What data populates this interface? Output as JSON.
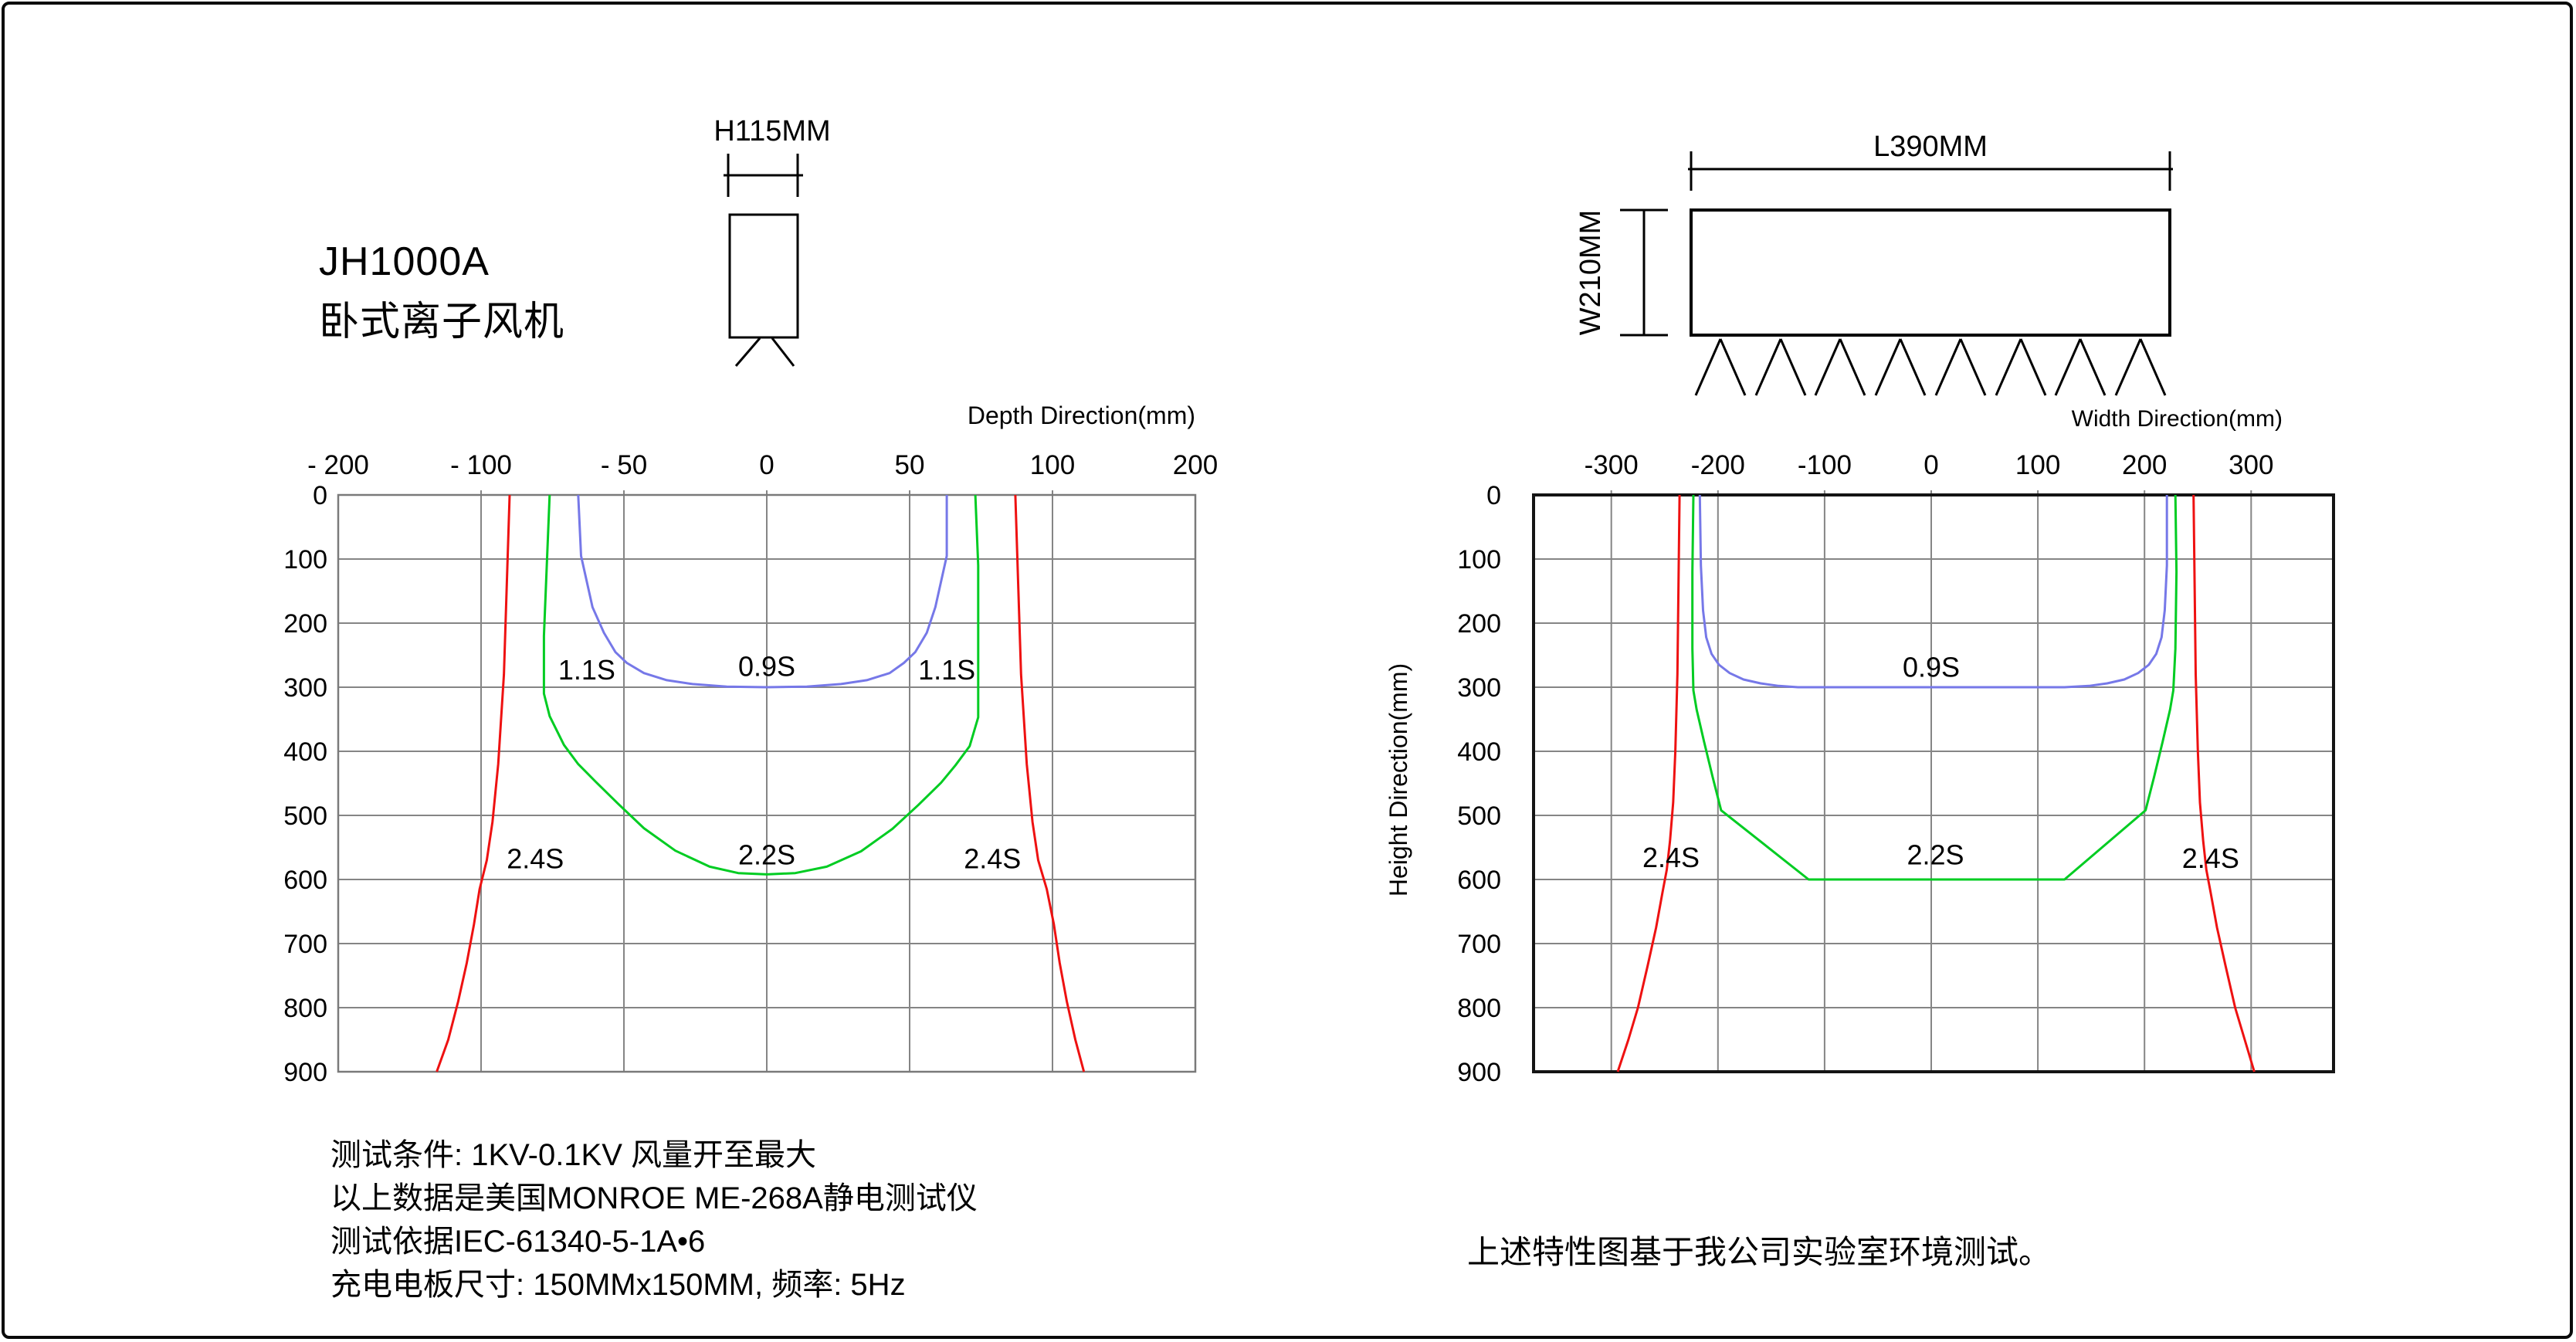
{
  "title": {
    "line1": "JH1000A",
    "line2": "卧式离子风机"
  },
  "device_side_view": {
    "height_dim_label": "H115MM"
  },
  "device_top_view": {
    "length_dim_label": "L390MM",
    "width_dim_label": "W210MM"
  },
  "notes_left": {
    "lines": [
      "测试条件: 1KV-0.1KV  风量开至最大",
      "以上数据是美国MONROE ME-268A静电测试仪",
      "测试依据IEC-61340-5-1A•6",
      "充电电板尺寸: 150MMx150MM, 频率: 5Hz"
    ]
  },
  "note_right": "上述特性图基于我公司实验室环境测试。",
  "colors": {
    "contour_fast": "#7678e8",
    "contour_mid": "#00cc22",
    "contour_outer": "#ee1111",
    "grid": "#858585",
    "frame_left_chart": "#7a7a7a",
    "frame_right_chart": "#141414"
  },
  "chart_data": [
    {
      "type": "line",
      "name": "depth-direction-decay-contours",
      "xlabel": "Depth Direction(mm)",
      "ylabel": "",
      "x_axis": {
        "tick_values": [
          -200,
          -100,
          -50,
          0,
          50,
          100,
          200
        ],
        "tick_labels": [
          "- 200",
          "- 100",
          "- 50",
          "0",
          "50",
          "100",
          "200"
        ],
        "spacing": "equal-per-tick"
      },
      "y_axis": {
        "tick_values": [
          0,
          100,
          200,
          300,
          400,
          500,
          600,
          700,
          800,
          900
        ],
        "tick_labels": [
          "0",
          "100",
          "200",
          "300",
          "400",
          "500",
          "600",
          "700",
          "800",
          "900"
        ],
        "range": [
          0,
          900
        ]
      },
      "grid": true,
      "series": [
        {
          "name": "contour-0.9s-blue",
          "color": "#7678e8",
          "points": [
            [
              -66,
              0
            ],
            [
              -65,
              95
            ],
            [
              -64,
              115
            ],
            [
              -61,
              175
            ],
            [
              -57,
              215
            ],
            [
              -53,
              245
            ],
            [
              -49,
              262
            ],
            [
              -43,
              278
            ],
            [
              -35,
              289
            ],
            [
              -26,
              295
            ],
            [
              -14,
              299
            ],
            [
              0,
              300
            ],
            [
              14,
              299
            ],
            [
              26,
              295
            ],
            [
              35,
              289
            ],
            [
              43,
              278
            ],
            [
              48,
              262
            ],
            [
              52,
              245
            ],
            [
              56,
              215
            ],
            [
              59,
              175
            ],
            [
              62,
              115
            ],
            [
              63,
              95
            ],
            [
              63,
              0
            ]
          ]
        },
        {
          "name": "contour-2.2s-green",
          "color": "#00cc22",
          "points": [
            [
              -76,
              0
            ],
            [
              -77,
              110
            ],
            [
              -78,
              220
            ],
            [
              -78,
              310
            ],
            [
              -76,
              345
            ],
            [
              -71,
              390
            ],
            [
              -66,
              420
            ],
            [
              -60,
              447
            ],
            [
              -52,
              482
            ],
            [
              -43,
              520
            ],
            [
              -32,
              555
            ],
            [
              -20,
              580
            ],
            [
              -10,
              590
            ],
            [
              0,
              592
            ],
            [
              10,
              590
            ],
            [
              21,
              580
            ],
            [
              33,
              556
            ],
            [
              44,
              521
            ],
            [
              53,
              484
            ],
            [
              61,
              449
            ],
            [
              66,
              422
            ],
            [
              71,
              392
            ],
            [
              74,
              347
            ],
            [
              74,
              310
            ],
            [
              74,
              220
            ],
            [
              74,
              110
            ],
            [
              73,
              0
            ]
          ]
        },
        {
          "name": "outer-boundary-left-red",
          "color": "#ee1111",
          "points": [
            [
              -90,
              0
            ],
            [
              -91,
              140
            ],
            [
              -92,
              280
            ],
            [
              -94,
              420
            ],
            [
              -96,
              510
            ],
            [
              -98,
              570
            ],
            [
              -101,
              615
            ],
            [
              -105,
              670
            ],
            [
              -110,
              730
            ],
            [
              -116,
              790
            ],
            [
              -123,
              850
            ],
            [
              -131,
              900
            ]
          ]
        },
        {
          "name": "outer-boundary-right-red",
          "color": "#ee1111",
          "points": [
            [
              87,
              0
            ],
            [
              88,
              140
            ],
            [
              89,
              280
            ],
            [
              91,
              420
            ],
            [
              93,
              510
            ],
            [
              95,
              570
            ],
            [
              98,
              615
            ],
            [
              101,
              670
            ],
            [
              105,
              730
            ],
            [
              110,
              790
            ],
            [
              116,
              850
            ],
            [
              122,
              900
            ]
          ]
        }
      ],
      "annotations": [
        {
          "text": "1.1S",
          "x": -63,
          "y": 272
        },
        {
          "text": "0.9S",
          "x": 0,
          "y": 267
        },
        {
          "text": "1.1S",
          "x": 63,
          "y": 272
        },
        {
          "text": "2.4S",
          "x": -81,
          "y": 567
        },
        {
          "text": "2.2S",
          "x": 0,
          "y": 561
        },
        {
          "text": "2.4S",
          "x": 79,
          "y": 567
        }
      ]
    },
    {
      "type": "line",
      "name": "width-direction-decay-contours",
      "xlabel": "Width Direction(mm)",
      "ylabel": "Height Direction(mm)",
      "x_axis": {
        "tick_values": [
          -300,
          -200,
          -100,
          0,
          100,
          200,
          300
        ],
        "tick_labels": [
          "-300",
          "-200",
          "-100",
          "0",
          "100",
          "200",
          "300"
        ],
        "spacing": "linear"
      },
      "y_axis": {
        "tick_values": [
          0,
          100,
          200,
          300,
          400,
          500,
          600,
          700,
          800,
          900
        ],
        "tick_labels": [
          "0",
          "100",
          "200",
          "300",
          "400",
          "500",
          "600",
          "700",
          "800",
          "900"
        ],
        "range": [
          0,
          900
        ]
      },
      "grid": true,
      "series": [
        {
          "name": "contour-0.9s-blue",
          "color": "#7678e8",
          "points": [
            [
              -217,
              0
            ],
            [
              -216,
              110
            ],
            [
              -214,
              180
            ],
            [
              -211,
              222
            ],
            [
              -206,
              248
            ],
            [
              -199,
              265
            ],
            [
              -189,
              278
            ],
            [
              -176,
              288
            ],
            [
              -160,
              294
            ],
            [
              -143,
              298
            ],
            [
              -125,
              300
            ],
            [
              125,
              300
            ],
            [
              148,
              298
            ],
            [
              165,
              294
            ],
            [
              181,
              288
            ],
            [
              194,
              278
            ],
            [
              204,
              265
            ],
            [
              211,
              248
            ],
            [
              216,
              222
            ],
            [
              219,
              180
            ],
            [
              221,
              110
            ],
            [
              221,
              0
            ]
          ]
        },
        {
          "name": "contour-2.2s-green",
          "color": "#00cc22",
          "points": [
            [
              -223,
              0
            ],
            [
              -224,
              120
            ],
            [
              -224,
              240
            ],
            [
              -223,
              305
            ],
            [
              -220,
              335
            ],
            [
              -213,
              385
            ],
            [
              -205,
              440
            ],
            [
              -197,
              492
            ],
            [
              -115,
              600
            ],
            [
              125,
              600
            ],
            [
              201,
              492
            ],
            [
              209,
              440
            ],
            [
              217,
              385
            ],
            [
              224,
              335
            ],
            [
              227,
              305
            ],
            [
              229,
              240
            ],
            [
              230,
              120
            ],
            [
              229,
              0
            ]
          ]
        },
        {
          "name": "outer-boundary-left-red",
          "color": "#ee1111",
          "points": [
            [
              -236,
              0
            ],
            [
              -237,
              140
            ],
            [
              -238,
              280
            ],
            [
              -240,
              400
            ],
            [
              -242,
              480
            ],
            [
              -245,
              540
            ],
            [
              -248,
              585
            ],
            [
              -252,
              620
            ],
            [
              -258,
              675
            ],
            [
              -266,
              735
            ],
            [
              -275,
              800
            ],
            [
              -284,
              850
            ],
            [
              -294,
              900
            ]
          ]
        },
        {
          "name": "outer-boundary-right-red",
          "color": "#ee1111",
          "points": [
            [
              246,
              0
            ],
            [
              247,
              140
            ],
            [
              248,
              280
            ],
            [
              250,
              400
            ],
            [
              252,
              480
            ],
            [
              255,
              540
            ],
            [
              258,
              585
            ],
            [
              262,
              620
            ],
            [
              268,
              675
            ],
            [
              276,
              735
            ],
            [
              285,
              800
            ],
            [
              294,
              850
            ],
            [
              303,
              900
            ]
          ]
        }
      ],
      "annotations": [
        {
          "text": "0.9S",
          "x": 0,
          "y": 268
        },
        {
          "text": "2.4S",
          "x": -244,
          "y": 565
        },
        {
          "text": "2.2S",
          "x": 4,
          "y": 561
        },
        {
          "text": "2.4S",
          "x": 262,
          "y": 566
        }
      ]
    }
  ]
}
